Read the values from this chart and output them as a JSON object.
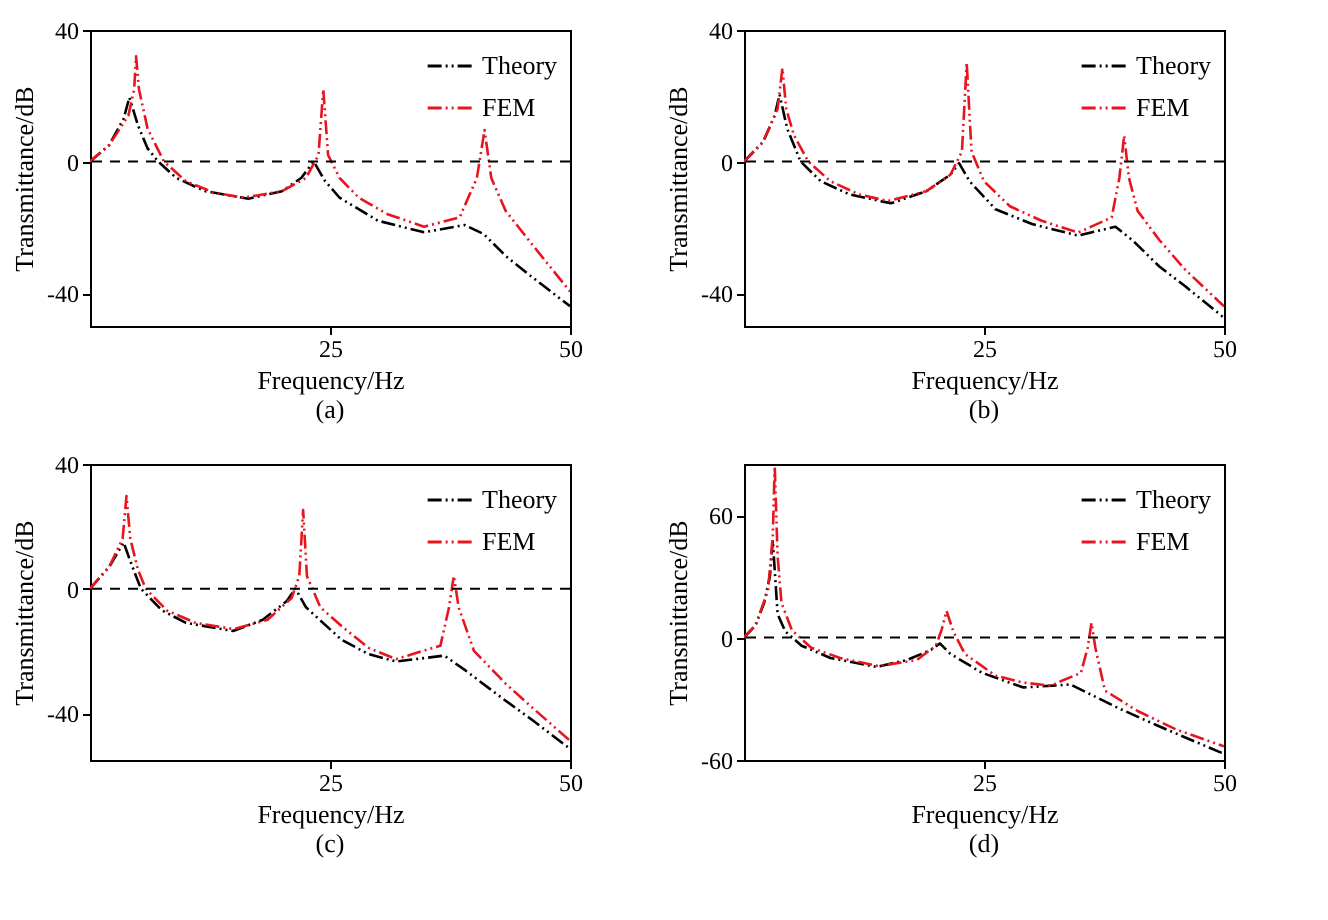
{
  "chart_data": [
    {
      "type": "line",
      "xlabel": "Frequency/Hz",
      "ylabel": "Transmittance/dB",
      "annotations": [
        "(a)"
      ],
      "xlim": [
        0,
        50
      ],
      "xticks": [
        25,
        50
      ],
      "ylim": [
        -50,
        40
      ],
      "yticks": [
        -40,
        0,
        40
      ],
      "legend": "top right",
      "grid": false,
      "line_style": "dashed",
      "marker": "none",
      "ref_lines": [
        {
          "axis": "y",
          "value": 0,
          "color": "#000000",
          "line_style": "dashed"
        }
      ],
      "series": [
        {
          "name": "Theory",
          "color": "#000000",
          "x": [
            0,
            2,
            3.5,
            4.1,
            5,
            6,
            7.1,
            9,
            12,
            16.5,
            20,
            22,
            23.3,
            24.5,
            26,
            30,
            34.8,
            39,
            41,
            43.3,
            46,
            50
          ],
          "values": [
            0,
            5,
            13,
            19.5,
            11,
            4,
            0,
            -5,
            -9,
            -11.3,
            -9,
            -5,
            0,
            -6,
            -11,
            -18,
            -21.5,
            -19.3,
            -22,
            -28.7,
            -35,
            -44
          ]
        },
        {
          "name": "FEM",
          "color": "#e8141e",
          "x": [
            0,
            2,
            4,
            4.6,
            4.8,
            5.1,
            6,
            7.7,
            10,
            13,
            16,
            20,
            22.5,
            23.8,
            24.3,
            24.8,
            26,
            28,
            31,
            34.8,
            38.5,
            40.3,
            41.1,
            41.8,
            43.3,
            46,
            50
          ],
          "values": [
            0,
            5,
            14,
            22,
            32,
            22,
            10,
            0,
            -6,
            -9.5,
            -11,
            -9,
            -5,
            2,
            22,
            2,
            -5,
            -11,
            -16,
            -19.8,
            -17,
            -5,
            9.6,
            -5,
            -15,
            -25,
            -39.5
          ]
        }
      ]
    },
    {
      "type": "line",
      "xlabel": "Frequency/Hz",
      "ylabel": "Transmittance/dB",
      "annotations": [
        "(b)"
      ],
      "xlim": [
        0,
        50
      ],
      "xticks": [
        25,
        50
      ],
      "ylim": [
        -50,
        40
      ],
      "yticks": [
        -40,
        0,
        40
      ],
      "legend": "top right",
      "grid": false,
      "line_style": "dashed",
      "marker": "none",
      "ref_lines": [
        {
          "axis": "y",
          "value": 0,
          "color": "#000000",
          "line_style": "dashed"
        }
      ],
      "series": [
        {
          "name": "Theory",
          "color": "#000000",
          "x": [
            0,
            2,
            3.2,
            3.7,
            4.5,
            5.9,
            8,
            11,
            15.3,
            19,
            21.5,
            22.4,
            23.5,
            26.2,
            30,
            34.8,
            38.7,
            40.5,
            43.3,
            46,
            50
          ],
          "values": [
            0,
            6,
            14,
            20.4,
            10,
            0,
            -6,
            -10,
            -12.7,
            -9,
            -4,
            -0.5,
            -6,
            -14.5,
            -19,
            -22.5,
            -19.8,
            -24,
            -32,
            -38,
            -47.5
          ]
        },
        {
          "name": "FEM",
          "color": "#e8141e",
          "x": [
            0,
            2,
            3.5,
            4,
            4.4,
            5.2,
            6.7,
            9,
            12,
            15,
            19,
            21.5,
            22.7,
            23.2,
            23.7,
            25,
            27.7,
            31,
            34.8,
            38.3,
            39.1,
            39.6,
            40.1,
            41,
            43.3,
            46,
            50
          ],
          "values": [
            0,
            6,
            16,
            28.4,
            16,
            8,
            0,
            -6,
            -10,
            -12,
            -9,
            -4,
            3,
            30,
            3,
            -6,
            -13.6,
            -18,
            -21.6,
            -17,
            -5,
            7.9,
            -5,
            -15,
            -24,
            -33,
            -44
          ]
        }
      ]
    },
    {
      "type": "line",
      "xlabel": "Frequency/Hz",
      "ylabel": "Transmittance/dB",
      "annotations": [
        "(c)"
      ],
      "xlim": [
        0,
        50
      ],
      "xticks": [
        25,
        50
      ],
      "ylim": [
        -55,
        40
      ],
      "yticks": [
        -40,
        0,
        40
      ],
      "legend": "top right",
      "grid": false,
      "line_style": "dashed",
      "marker": "none",
      "ref_lines": [
        {
          "axis": "y",
          "value": 0,
          "color": "#000000",
          "line_style": "dashed"
        }
      ],
      "series": [
        {
          "name": "Theory",
          "color": "#000000",
          "x": [
            0,
            2,
            3.5,
            4.3,
            5.3,
            7.5,
            10,
            14.9,
            18,
            20.5,
            21.4,
            22.5,
            26.2,
            29,
            31.9,
            36.9,
            39,
            43.3,
            46,
            50
          ],
          "values": [
            0,
            7,
            14.8,
            8,
            0,
            -7,
            -11,
            -13.6,
            -10,
            -4,
            0,
            -6,
            -16.4,
            -21,
            -23.4,
            -21.5,
            -26,
            -36,
            -42,
            -51.4
          ]
        },
        {
          "name": "FEM",
          "color": "#e8141e",
          "x": [
            0,
            2,
            3.4,
            3.8,
            4.2,
            5,
            5.8,
            8,
            11,
            15,
            18.5,
            21,
            21.8,
            22.2,
            22.6,
            24,
            26.2,
            29,
            31.9,
            36.5,
            37.4,
            37.9,
            38.4,
            40,
            43.3,
            46,
            50
          ],
          "values": [
            0,
            7,
            16,
            29.7,
            16,
            6,
            0,
            -7,
            -11,
            -13,
            -10,
            -3,
            4,
            25.2,
            4,
            -6,
            -12,
            -19,
            -22.6,
            -18.3,
            -6,
            4.1,
            -6,
            -20,
            -30.5,
            -38,
            -48.8
          ]
        }
      ]
    },
    {
      "type": "line",
      "xlabel": "Frequency/Hz",
      "ylabel": "Transmittance/dB",
      "annotations": [
        "(d)"
      ],
      "xlim": [
        0,
        50
      ],
      "xticks": [
        25,
        50
      ],
      "ylim": [
        -60,
        85
      ],
      "yticks": [
        -60,
        0,
        60
      ],
      "legend": "top right",
      "grid": false,
      "line_style": "dashed",
      "marker": "none",
      "ref_lines": [
        {
          "axis": "y",
          "value": 0,
          "color": "#000000",
          "line_style": "dashed"
        }
      ],
      "series": [
        {
          "name": "Theory",
          "color": "#000000",
          "x": [
            0,
            1.2,
            2.1,
            2.7,
            3,
            3.5,
            4.3,
            6,
            9,
            13.8,
            17,
            19.5,
            20.4,
            21.5,
            24.8,
            29.1,
            34,
            39,
            43,
            50
          ],
          "values": [
            0,
            6,
            17,
            30,
            47.6,
            11.5,
            3,
            -4,
            -10,
            -14.4,
            -11,
            -6,
            -2.9,
            -8,
            -17.3,
            -24.5,
            -23,
            -34.6,
            -43,
            -57
          ]
        },
        {
          "name": "FEM",
          "color": "#e8141e",
          "x": [
            0,
            1.2,
            2.5,
            3,
            3.2,
            3.5,
            3.9,
            5,
            7,
            10,
            14,
            18,
            20,
            20.6,
            21.1,
            21.8,
            23,
            26.2,
            29,
            31.9,
            35.1,
            35.8,
            36.2,
            36.6,
            37.6,
            41,
            45,
            50
          ],
          "values": [
            0,
            6,
            23,
            50,
            84,
            40,
            17,
            3.5,
            -5,
            -10,
            -14,
            -11,
            -4,
            4,
            13,
            3,
            -8,
            -18.7,
            -22,
            -23.6,
            -17.3,
            -5,
            7.2,
            -5,
            -26,
            -36,
            -45,
            -53.3
          ]
        }
      ]
    }
  ]
}
